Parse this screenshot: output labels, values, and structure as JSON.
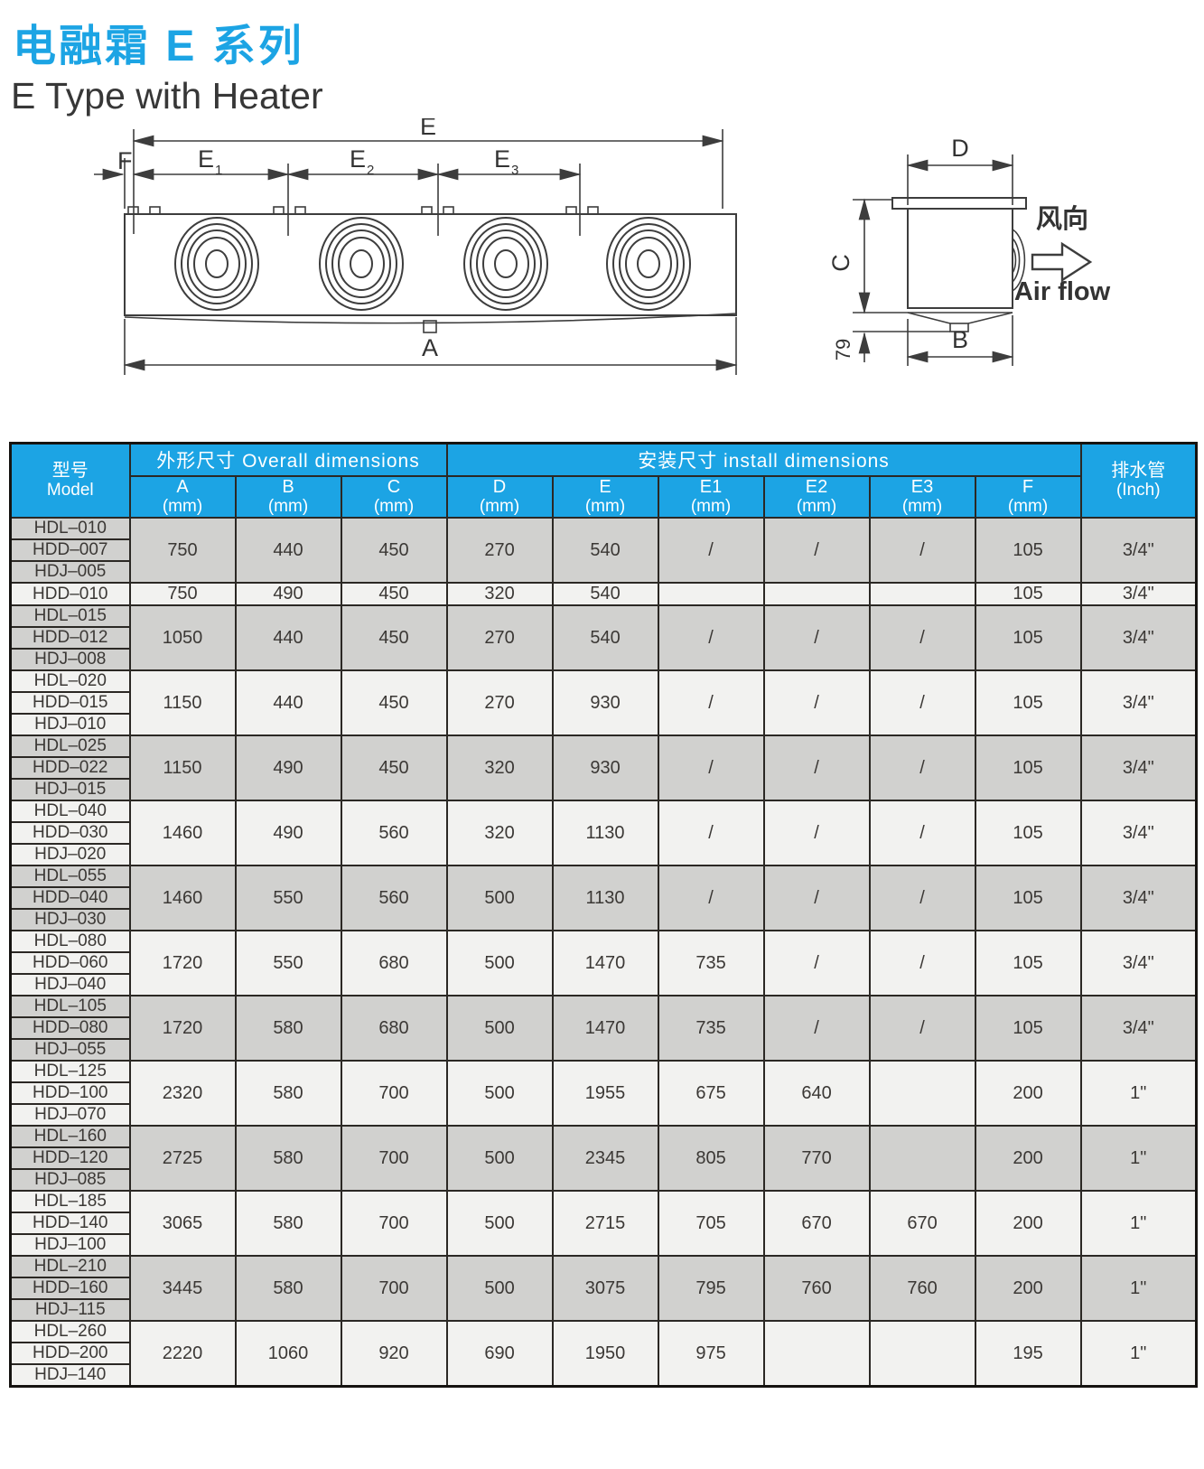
{
  "page": {
    "title_zh": "电融霜 E 系列",
    "title_en": "E Type with Heater"
  },
  "diagram": {
    "front": {
      "dim_e": "E",
      "dim_e1_main": "E",
      "dim_e1_sub": "1",
      "dim_e2_main": "E",
      "dim_e2_sub": "2",
      "dim_e3_main": "E",
      "dim_e3_sub": "3",
      "dim_f": "F",
      "dim_a": "A"
    },
    "side": {
      "dim_d": "D",
      "dim_c": "C",
      "dim_b": "B",
      "dim_79": "79",
      "airflow_zh": "风向",
      "airflow_en": "Air flow"
    }
  },
  "table": {
    "header": {
      "model_zh": "型号",
      "model_en": "Model",
      "overall": "外形尺寸 Overall dimensions",
      "install": "安装尺寸 install dimensions",
      "drain_zh": "排水管",
      "drain_en": "(Inch)",
      "columns": [
        {
          "letter": "A",
          "unit": "(mm)"
        },
        {
          "letter": "B",
          "unit": "(mm)"
        },
        {
          "letter": "C",
          "unit": "(mm)"
        },
        {
          "letter": "D",
          "unit": "(mm)"
        },
        {
          "letter": "E",
          "unit": "(mm)"
        },
        {
          "letter": "E1",
          "unit": "(mm)"
        },
        {
          "letter": "E2",
          "unit": "(mm)"
        },
        {
          "letter": "E3",
          "unit": "(mm)"
        },
        {
          "letter": "F",
          "unit": "(mm)"
        }
      ]
    },
    "groups": [
      {
        "models": [
          "HDL–010",
          "HDD–007",
          "HDJ–005"
        ],
        "values": [
          "750",
          "440",
          "450",
          "270",
          "540",
          "/",
          "/",
          "/",
          "105"
        ],
        "drain": "3/4\""
      },
      {
        "models": [
          "HDD–010"
        ],
        "values": [
          "750",
          "490",
          "450",
          "320",
          "540",
          "",
          "",
          "",
          "105"
        ],
        "drain": "3/4\""
      },
      {
        "models": [
          "HDL–015",
          "HDD–012",
          "HDJ–008"
        ],
        "values": [
          "1050",
          "440",
          "450",
          "270",
          "540",
          "/",
          "/",
          "/",
          "105"
        ],
        "drain": "3/4\""
      },
      {
        "models": [
          "HDL–020",
          "HDD–015",
          "HDJ–010"
        ],
        "values": [
          "1150",
          "440",
          "450",
          "270",
          "930",
          "/",
          "/",
          "/",
          "105"
        ],
        "drain": "3/4\""
      },
      {
        "models": [
          "HDL–025",
          "HDD–022",
          "HDJ–015"
        ],
        "values": [
          "1150",
          "490",
          "450",
          "320",
          "930",
          "/",
          "/",
          "/",
          "105"
        ],
        "drain": "3/4\""
      },
      {
        "models": [
          "HDL–040",
          "HDD–030",
          "HDJ–020"
        ],
        "values": [
          "1460",
          "490",
          "560",
          "320",
          "1130",
          "/",
          "/",
          "/",
          "105"
        ],
        "drain": "3/4\""
      },
      {
        "models": [
          "HDL–055",
          "HDD–040",
          "HDJ–030"
        ],
        "values": [
          "1460",
          "550",
          "560",
          "500",
          "1130",
          "/",
          "/",
          "/",
          "105"
        ],
        "drain": "3/4\""
      },
      {
        "models": [
          "HDL–080",
          "HDD–060",
          "HDJ–040"
        ],
        "values": [
          "1720",
          "550",
          "680",
          "500",
          "1470",
          "735",
          "/",
          "/",
          "105"
        ],
        "drain": "3/4\""
      },
      {
        "models": [
          "HDL–105",
          "HDD–080",
          "HDJ–055"
        ],
        "values": [
          "1720",
          "580",
          "680",
          "500",
          "1470",
          "735",
          "/",
          "/",
          "105"
        ],
        "drain": "3/4\""
      },
      {
        "models": [
          "HDL–125",
          "HDD–100",
          "HDJ–070"
        ],
        "values": [
          "2320",
          "580",
          "700",
          "500",
          "1955",
          "675",
          "640",
          "",
          "200"
        ],
        "drain": "1\""
      },
      {
        "models": [
          "HDL–160",
          "HDD–120",
          "HDJ–085"
        ],
        "values": [
          "2725",
          "580",
          "700",
          "500",
          "2345",
          "805",
          "770",
          "",
          "200"
        ],
        "drain": "1\""
      },
      {
        "models": [
          "HDL–185",
          "HDD–140",
          "HDJ–100"
        ],
        "values": [
          "3065",
          "580",
          "700",
          "500",
          "2715",
          "705",
          "670",
          "670",
          "200"
        ],
        "drain": "1\""
      },
      {
        "models": [
          "HDL–210",
          "HDD–160",
          "HDJ–115"
        ],
        "values": [
          "3445",
          "580",
          "700",
          "500",
          "3075",
          "795",
          "760",
          "760",
          "200"
        ],
        "drain": "1\""
      },
      {
        "models": [
          "HDL–260",
          "HDD–200",
          "HDJ–140"
        ],
        "values": [
          "2220",
          "1060",
          "920",
          "690",
          "1950",
          "975",
          "",
          "",
          "195"
        ],
        "drain": "1\""
      }
    ]
  },
  "colors": {
    "accent_blue": "#1ca4e4",
    "row_gray": "#d1d1cf",
    "row_light": "#f2f2f0",
    "grid": "#2b2824",
    "line": "#3d3d3d"
  }
}
